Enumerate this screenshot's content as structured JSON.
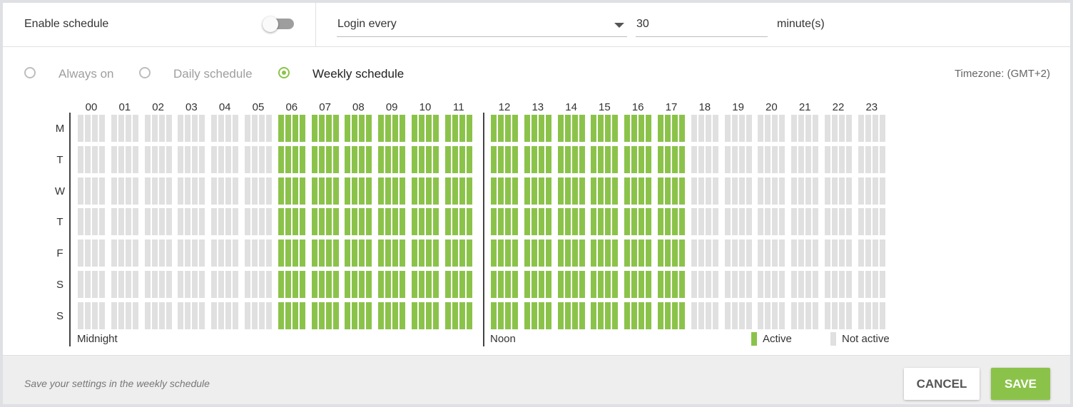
{
  "header": {
    "enable_label": "Enable schedule",
    "enable_on": false,
    "login_select": "Login every",
    "interval_value": "30",
    "interval_unit": "minute(s)"
  },
  "modes": [
    {
      "label": "Always on",
      "selected": false
    },
    {
      "label": "Daily schedule",
      "selected": false
    },
    {
      "label": "Weekly schedule",
      "selected": true
    }
  ],
  "timezone": "Timezone: (GMT+2)",
  "schedule": {
    "hours": [
      "00",
      "01",
      "02",
      "03",
      "04",
      "05",
      "06",
      "07",
      "08",
      "09",
      "10",
      "11",
      "12",
      "13",
      "14",
      "15",
      "16",
      "17",
      "18",
      "19",
      "20",
      "21",
      "22",
      "23"
    ],
    "slots_per_hour": 4,
    "days": [
      {
        "label": "M",
        "active_hours": [
          6,
          7,
          8,
          9,
          10,
          11,
          12,
          13,
          14,
          15,
          16,
          17
        ]
      },
      {
        "label": "T",
        "active_hours": [
          6,
          7,
          8,
          9,
          10,
          11,
          12,
          13,
          14,
          15,
          16,
          17
        ]
      },
      {
        "label": "W",
        "active_hours": [
          6,
          7,
          8,
          9,
          10,
          11,
          12,
          13,
          14,
          15,
          16,
          17
        ]
      },
      {
        "label": "T",
        "active_hours": [
          6,
          7,
          8,
          9,
          10,
          11,
          12,
          13,
          14,
          15,
          16,
          17
        ]
      },
      {
        "label": "F",
        "active_hours": [
          6,
          7,
          8,
          9,
          10,
          11,
          12,
          13,
          14,
          15,
          16,
          17
        ]
      },
      {
        "label": "S",
        "active_hours": [
          6,
          7,
          8,
          9,
          10,
          11,
          12,
          13,
          14,
          15,
          16,
          17
        ]
      },
      {
        "label": "S",
        "active_hours": [
          6,
          7,
          8,
          9,
          10,
          11,
          12,
          13,
          14,
          15,
          16,
          17
        ]
      }
    ],
    "midnight_label": "Midnight",
    "noon_label": "Noon",
    "legend_active": "Active",
    "legend_inactive": "Not active",
    "active_color": "#8bc34a",
    "inactive_color": "#e0e0e0"
  },
  "footer": {
    "hint": "Save your settings in the weekly schedule",
    "cancel": "CANCEL",
    "save": "SAVE"
  }
}
